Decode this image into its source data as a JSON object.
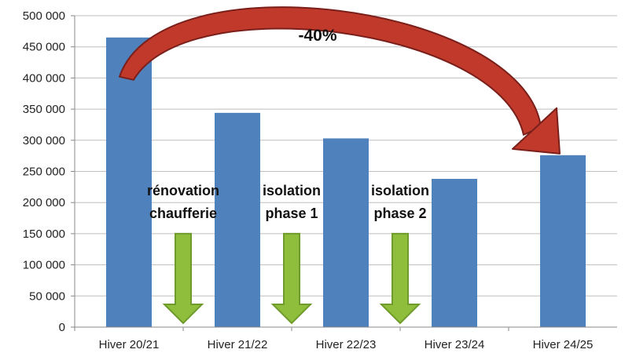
{
  "chart_data": {
    "type": "bar",
    "categories": [
      "Hiver 20/21",
      "Hiver 21/22",
      "Hiver 22/23",
      "Hiver 23/24",
      "Hiver 24/25"
    ],
    "values": [
      465000,
      344000,
      303000,
      238000,
      276000
    ],
    "ylim": [
      0,
      500000
    ],
    "yticks": [
      0,
      50000,
      100000,
      150000,
      200000,
      250000,
      300000,
      350000,
      400000,
      450000,
      500000
    ],
    "ytick_labels": [
      "0",
      "50 000",
      "100 000",
      "150 000",
      "200 000",
      "250 000",
      "300 000",
      "350 000",
      "400 000",
      "450 000",
      "500 000"
    ],
    "grid": true,
    "colors": {
      "bar": "#4f81bd",
      "down_arrow": "#8fbe3c",
      "down_arrow_edge": "#6f9a2c",
      "curve_arrow": "#c0392b",
      "curve_arrow_edge": "#7a1f1a"
    },
    "annotations": {
      "reduction": "-40%",
      "steps": [
        {
          "lines": [
            "rénovation",
            "chaufferie"
          ],
          "between": [
            0,
            1
          ]
        },
        {
          "lines": [
            "isolation",
            "phase 1"
          ],
          "between": [
            1,
            2
          ]
        },
        {
          "lines": [
            "isolation",
            "phase 2"
          ],
          "between": [
            2,
            3
          ]
        }
      ]
    }
  }
}
